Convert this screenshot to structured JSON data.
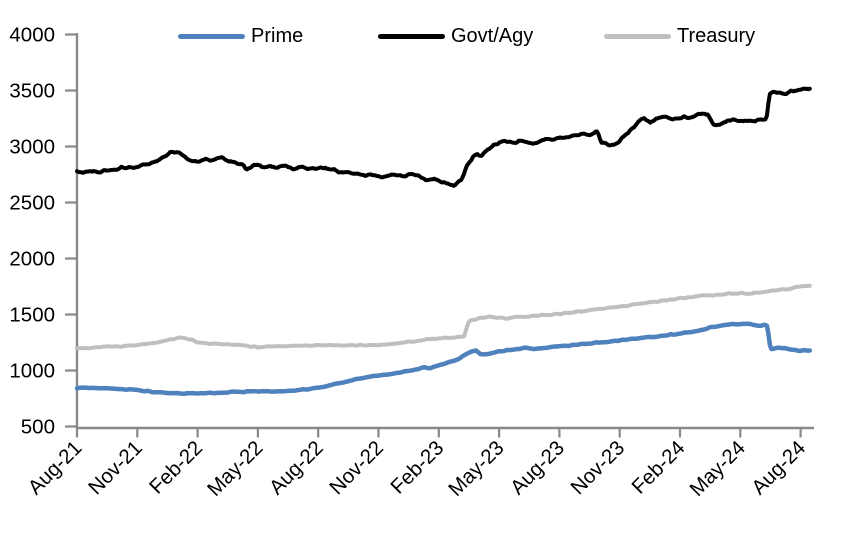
{
  "chart_data": {
    "type": "line",
    "title": "",
    "x_unit": "months since Aug-2021 (0 = Aug-21, 36 = Aug-24)",
    "x_axis": {
      "tick_labels": [
        "Aug-21",
        "Nov-21",
        "Feb-22",
        "May-22",
        "Aug-22",
        "Nov-22",
        "Feb-23",
        "May-23",
        "Aug-23",
        "Nov-23",
        "Feb-24",
        "May-24",
        "Aug-24"
      ],
      "tick_interval_months": 3,
      "range_months": [
        0,
        36.5
      ]
    },
    "y_axis": {
      "min": 500,
      "max": 4000,
      "step": 500,
      "tick_labels": [
        "500",
        "1000",
        "1500",
        "2000",
        "2500",
        "3000",
        "3500",
        "4000"
      ]
    },
    "grid": false,
    "legend_position": "top",
    "axis_color": "#898989",
    "series": [
      {
        "name": "Prime",
        "color": "#4F81BD",
        "stroke_width": 4.5,
        "noise": 4,
        "points": [
          [
            0,
            845
          ],
          [
            0.5,
            843
          ],
          [
            1,
            841
          ],
          [
            1.5,
            839
          ],
          [
            2,
            836
          ],
          [
            2.5,
            831
          ],
          [
            3,
            824
          ],
          [
            3.5,
            815
          ],
          [
            4,
            806
          ],
          [
            4.5,
            799
          ],
          [
            5,
            795
          ],
          [
            5.5,
            794
          ],
          [
            6,
            796
          ],
          [
            6.5,
            798
          ],
          [
            7,
            801
          ],
          [
            7.5,
            806
          ],
          [
            8,
            812
          ],
          [
            8.3,
            808
          ],
          [
            8.45,
            818
          ],
          [
            9,
            816
          ],
          [
            9.5,
            812
          ],
          [
            10,
            815
          ],
          [
            10.5,
            819
          ],
          [
            11,
            824
          ],
          [
            11.5,
            832
          ],
          [
            12,
            846
          ],
          [
            12.5,
            864
          ],
          [
            13,
            885
          ],
          [
            13.5,
            906
          ],
          [
            14,
            926
          ],
          [
            14.5,
            941
          ],
          [
            15,
            955
          ],
          [
            15.5,
            966
          ],
          [
            16,
            980
          ],
          [
            16.5,
            996
          ],
          [
            17,
            1012
          ],
          [
            17.3,
            1030
          ],
          [
            17.55,
            1022
          ],
          [
            18,
            1048
          ],
          [
            18.5,
            1074
          ],
          [
            19,
            1100
          ],
          [
            19.3,
            1140
          ],
          [
            19.6,
            1168
          ],
          [
            19.85,
            1176
          ],
          [
            20.1,
            1144
          ],
          [
            20.5,
            1150
          ],
          [
            21,
            1172
          ],
          [
            21.5,
            1184
          ],
          [
            22,
            1194
          ],
          [
            22.3,
            1204
          ],
          [
            22.7,
            1193
          ],
          [
            23,
            1199
          ],
          [
            23.5,
            1208
          ],
          [
            24,
            1214
          ],
          [
            24.5,
            1221
          ],
          [
            25,
            1234
          ],
          [
            25.5,
            1244
          ],
          [
            26,
            1251
          ],
          [
            26.5,
            1259
          ],
          [
            27,
            1269
          ],
          [
            27.5,
            1279
          ],
          [
            28,
            1289
          ],
          [
            28.5,
            1299
          ],
          [
            29,
            1309
          ],
          [
            29.5,
            1319
          ],
          [
            30,
            1329
          ],
          [
            30.5,
            1344
          ],
          [
            31,
            1361
          ],
          [
            31.5,
            1383
          ],
          [
            32,
            1401
          ],
          [
            32.5,
            1411
          ],
          [
            33,
            1416
          ],
          [
            33.3,
            1421
          ],
          [
            33.7,
            1406
          ],
          [
            34,
            1399
          ],
          [
            34.2,
            1405
          ],
          [
            34.35,
            1401
          ],
          [
            34.5,
            1192
          ],
          [
            34.9,
            1201
          ],
          [
            35.2,
            1197
          ],
          [
            35.6,
            1186
          ],
          [
            36,
            1177
          ],
          [
            36.5,
            1179
          ]
        ]
      },
      {
        "name": "Govt/Agy",
        "color": "#000000",
        "stroke_width": 4,
        "noise": 11,
        "points": [
          [
            0,
            2780
          ],
          [
            0.4,
            2768
          ],
          [
            0.8,
            2782
          ],
          [
            1.2,
            2775
          ],
          [
            1.6,
            2790
          ],
          [
            2,
            2800
          ],
          [
            2.4,
            2812
          ],
          [
            2.8,
            2806
          ],
          [
            3.2,
            2832
          ],
          [
            3.6,
            2848
          ],
          [
            4,
            2872
          ],
          [
            4.4,
            2905
          ],
          [
            4.7,
            2948
          ],
          [
            5,
            2940
          ],
          [
            5.3,
            2918
          ],
          [
            5.6,
            2886
          ],
          [
            6,
            2866
          ],
          [
            6.4,
            2892
          ],
          [
            6.8,
            2872
          ],
          [
            7.2,
            2896
          ],
          [
            7.6,
            2866
          ],
          [
            8,
            2846
          ],
          [
            8.25,
            2852
          ],
          [
            8.4,
            2800
          ],
          [
            8.7,
            2822
          ],
          [
            9,
            2832
          ],
          [
            9.3,
            2812
          ],
          [
            9.6,
            2826
          ],
          [
            10,
            2812
          ],
          [
            10.4,
            2822
          ],
          [
            10.8,
            2802
          ],
          [
            11.2,
            2812
          ],
          [
            11.6,
            2800
          ],
          [
            12,
            2802
          ],
          [
            12.6,
            2798
          ],
          [
            13,
            2782
          ],
          [
            13.4,
            2772
          ],
          [
            13.8,
            2756
          ],
          [
            14.2,
            2746
          ],
          [
            14.6,
            2740
          ],
          [
            15,
            2732
          ],
          [
            15.4,
            2744
          ],
          [
            15.8,
            2754
          ],
          [
            16.2,
            2732
          ],
          [
            16.7,
            2752
          ],
          [
            17,
            2736
          ],
          [
            17.4,
            2706
          ],
          [
            17.8,
            2716
          ],
          [
            18.1,
            2692
          ],
          [
            18.5,
            2656
          ],
          [
            18.8,
            2650
          ],
          [
            19.1,
            2700
          ],
          [
            19.4,
            2822
          ],
          [
            19.7,
            2916
          ],
          [
            19.9,
            2932
          ],
          [
            20.1,
            2906
          ],
          [
            20.4,
            2962
          ],
          [
            20.7,
            3002
          ],
          [
            21,
            3040
          ],
          [
            21.3,
            3052
          ],
          [
            21.7,
            3036
          ],
          [
            22,
            3050
          ],
          [
            22.5,
            3022
          ],
          [
            23,
            3050
          ],
          [
            23.4,
            3076
          ],
          [
            23.7,
            3062
          ],
          [
            24,
            3090
          ],
          [
            24.4,
            3082
          ],
          [
            24.8,
            3102
          ],
          [
            25.2,
            3112
          ],
          [
            25.5,
            3106
          ],
          [
            25.9,
            3140
          ],
          [
            26.1,
            3032
          ],
          [
            26.5,
            3016
          ],
          [
            26.9,
            3032
          ],
          [
            27.4,
            3112
          ],
          [
            27.9,
            3216
          ],
          [
            28.2,
            3256
          ],
          [
            28.5,
            3212
          ],
          [
            28.8,
            3242
          ],
          [
            29.2,
            3262
          ],
          [
            29.6,
            3236
          ],
          [
            30,
            3262
          ],
          [
            30.4,
            3256
          ],
          [
            30.8,
            3272
          ],
          [
            31.1,
            3300
          ],
          [
            31.4,
            3286
          ],
          [
            31.7,
            3182
          ],
          [
            32,
            3206
          ],
          [
            32.4,
            3242
          ],
          [
            32.8,
            3232
          ],
          [
            33.2,
            3226
          ],
          [
            33.6,
            3232
          ],
          [
            34,
            3242
          ],
          [
            34.3,
            3246
          ],
          [
            34.45,
            3480
          ],
          [
            34.8,
            3492
          ],
          [
            35.1,
            3466
          ],
          [
            35.5,
            3492
          ],
          [
            36,
            3512
          ],
          [
            36.5,
            3526
          ]
        ]
      },
      {
        "name": "Treasury",
        "color": "#BFBFBF",
        "stroke_width": 4,
        "noise": 5,
        "points": [
          [
            0,
            1196
          ],
          [
            0.5,
            1200
          ],
          [
            1,
            1205
          ],
          [
            1.5,
            1210
          ],
          [
            2,
            1215
          ],
          [
            2.5,
            1221
          ],
          [
            3,
            1229
          ],
          [
            3.5,
            1239
          ],
          [
            4,
            1252
          ],
          [
            4.5,
            1270
          ],
          [
            5,
            1288
          ],
          [
            5.3,
            1296
          ],
          [
            5.6,
            1278
          ],
          [
            6,
            1254
          ],
          [
            6.5,
            1243
          ],
          [
            7,
            1238
          ],
          [
            7.5,
            1232
          ],
          [
            8,
            1227
          ],
          [
            8.5,
            1219
          ],
          [
            9,
            1210
          ],
          [
            9.5,
            1216
          ],
          [
            10,
            1220
          ],
          [
            10.5,
            1215
          ],
          [
            11,
            1219
          ],
          [
            11.5,
            1222
          ],
          [
            12,
            1225
          ],
          [
            12.5,
            1228
          ],
          [
            13,
            1228
          ],
          [
            13.5,
            1226
          ],
          [
            14,
            1225
          ],
          [
            14.5,
            1227
          ],
          [
            15,
            1230
          ],
          [
            15.5,
            1236
          ],
          [
            16,
            1243
          ],
          [
            16.5,
            1255
          ],
          [
            17,
            1268
          ],
          [
            17.5,
            1279
          ],
          [
            18,
            1287
          ],
          [
            18.5,
            1292
          ],
          [
            19,
            1300
          ],
          [
            19.25,
            1306
          ],
          [
            19.5,
            1440
          ],
          [
            19.8,
            1458
          ],
          [
            20,
            1466
          ],
          [
            20.5,
            1476
          ],
          [
            21,
            1474
          ],
          [
            21.3,
            1464
          ],
          [
            21.7,
            1472
          ],
          [
            22,
            1477
          ],
          [
            22.5,
            1485
          ],
          [
            23,
            1492
          ],
          [
            23.5,
            1498
          ],
          [
            24,
            1505
          ],
          [
            24.5,
            1515
          ],
          [
            25,
            1527
          ],
          [
            25.5,
            1537
          ],
          [
            26,
            1549
          ],
          [
            26.5,
            1559
          ],
          [
            27,
            1569
          ],
          [
            27.5,
            1582
          ],
          [
            28,
            1595
          ],
          [
            28.5,
            1607
          ],
          [
            29,
            1619
          ],
          [
            29.5,
            1632
          ],
          [
            30,
            1645
          ],
          [
            30.5,
            1655
          ],
          [
            31,
            1665
          ],
          [
            31.3,
            1675
          ],
          [
            31.6,
            1665
          ],
          [
            32,
            1677
          ],
          [
            32.5,
            1687
          ],
          [
            33,
            1692
          ],
          [
            33.3,
            1682
          ],
          [
            33.7,
            1692
          ],
          [
            34,
            1697
          ],
          [
            34.5,
            1707
          ],
          [
            35,
            1719
          ],
          [
            35.5,
            1732
          ],
          [
            36,
            1748
          ],
          [
            36.5,
            1755
          ]
        ]
      }
    ]
  },
  "legend": {
    "items": [
      {
        "label": "Prime"
      },
      {
        "label": "Govt/Agy"
      },
      {
        "label": "Treasury"
      }
    ]
  }
}
